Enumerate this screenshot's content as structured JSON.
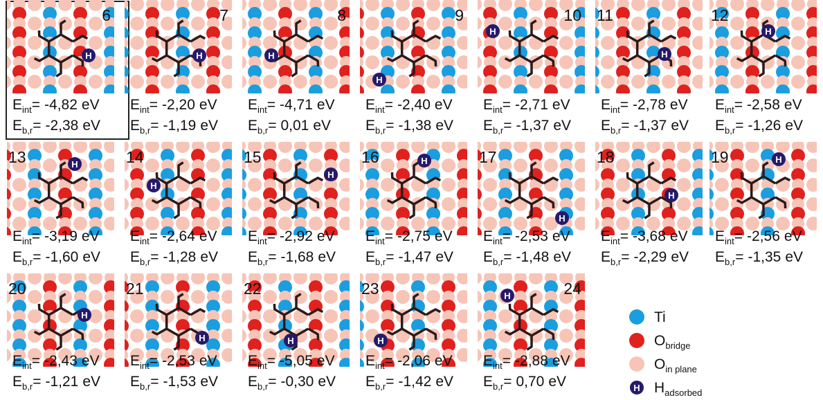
{
  "labels": {
    "e": "E",
    "int_sub": "int",
    "br_sub": "b,r",
    "eq": "=",
    "unit": "eV",
    "h_symbol": "H"
  },
  "panels": [
    {
      "number": "6",
      "e_int": "-4,82",
      "e_br": "-2,38"
    },
    {
      "number": "7",
      "e_int": "-2,20",
      "e_br": "-1,19"
    },
    {
      "number": "8",
      "e_int": "-4,71",
      "e_br": "0,01"
    },
    {
      "number": "9",
      "e_int": "-2,40",
      "e_br": "-1,38"
    },
    {
      "number": "10",
      "e_int": "-2,71",
      "e_br": "-1,37"
    },
    {
      "number": "11",
      "e_int": "-2,78",
      "e_br": "-1,37"
    },
    {
      "number": "12",
      "e_int": "-2,58",
      "e_br": "-1,26"
    },
    {
      "number": "13",
      "e_int": "-3,19",
      "e_br": "-1,60"
    },
    {
      "number": "14",
      "e_int": "-2,64",
      "e_br": "-1,28"
    },
    {
      "number": "15",
      "e_int": "-2,92",
      "e_br": "-1,68"
    },
    {
      "number": "16",
      "e_int": "-2,75",
      "e_br": "-1,47"
    },
    {
      "number": "17",
      "e_int": "-2,53",
      "e_br": "-1,48"
    },
    {
      "number": "18",
      "e_int": "-3,68",
      "e_br": "-2,29"
    },
    {
      "number": "19",
      "e_int": "-2,56",
      "e_br": "-1,35"
    },
    {
      "number": "20",
      "e_int": "-2,43",
      "e_br": "-1,21"
    },
    {
      "number": "21",
      "e_int": "-2,53",
      "e_br": "-1,53"
    },
    {
      "number": "22",
      "e_int": "-5,05",
      "e_br": "-0,30"
    },
    {
      "number": "23",
      "e_int": "-2,06",
      "e_br": "-1,42"
    },
    {
      "number": "24",
      "e_int": "-2,88",
      "e_br": "0,70"
    }
  ],
  "legend": [
    {
      "main": "Ti"
    },
    {
      "main": "O",
      "sub": "bridge"
    },
    {
      "main": "O",
      "sub": "in plane"
    },
    {
      "main": "H",
      "sub": "adsorbed"
    }
  ]
}
